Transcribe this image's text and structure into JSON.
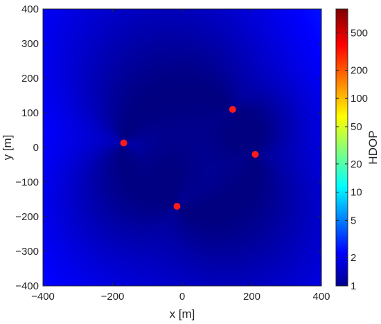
{
  "chart_data": {
    "type": "heatmap",
    "title": "",
    "xlabel": "x [m]",
    "ylabel": "y [m]",
    "xlim": [
      -400,
      400
    ],
    "ylim": [
      -400,
      400
    ],
    "x_ticks": [
      -400,
      -200,
      0,
      200,
      400
    ],
    "y_ticks": [
      -400,
      -300,
      -200,
      -100,
      0,
      100,
      200,
      300,
      400
    ],
    "x_tick_labels": [
      "−400",
      "−200",
      "0",
      "200",
      "400"
    ],
    "y_tick_labels": [
      "−400",
      "−300",
      "−200",
      "−100",
      "0",
      "100",
      "200",
      "300",
      "400"
    ],
    "colorbar": {
      "label": "HDOP",
      "scale": "log",
      "range": [
        1,
        900
      ],
      "ticks": [
        1,
        2,
        5,
        10,
        20,
        50,
        100,
        200,
        500
      ],
      "tick_labels": [
        "1",
        "2",
        "5",
        "10",
        "20",
        "50",
        "100",
        "200",
        "500"
      ],
      "colormap": "jet"
    },
    "anchors": {
      "color": "#ff1a1a",
      "points": [
        {
          "x": -168,
          "y": 13
        },
        {
          "x": 145,
          "y": 110
        },
        {
          "x": 210,
          "y": -20
        },
        {
          "x": -15,
          "y": -170
        }
      ]
    },
    "grid": false
  }
}
